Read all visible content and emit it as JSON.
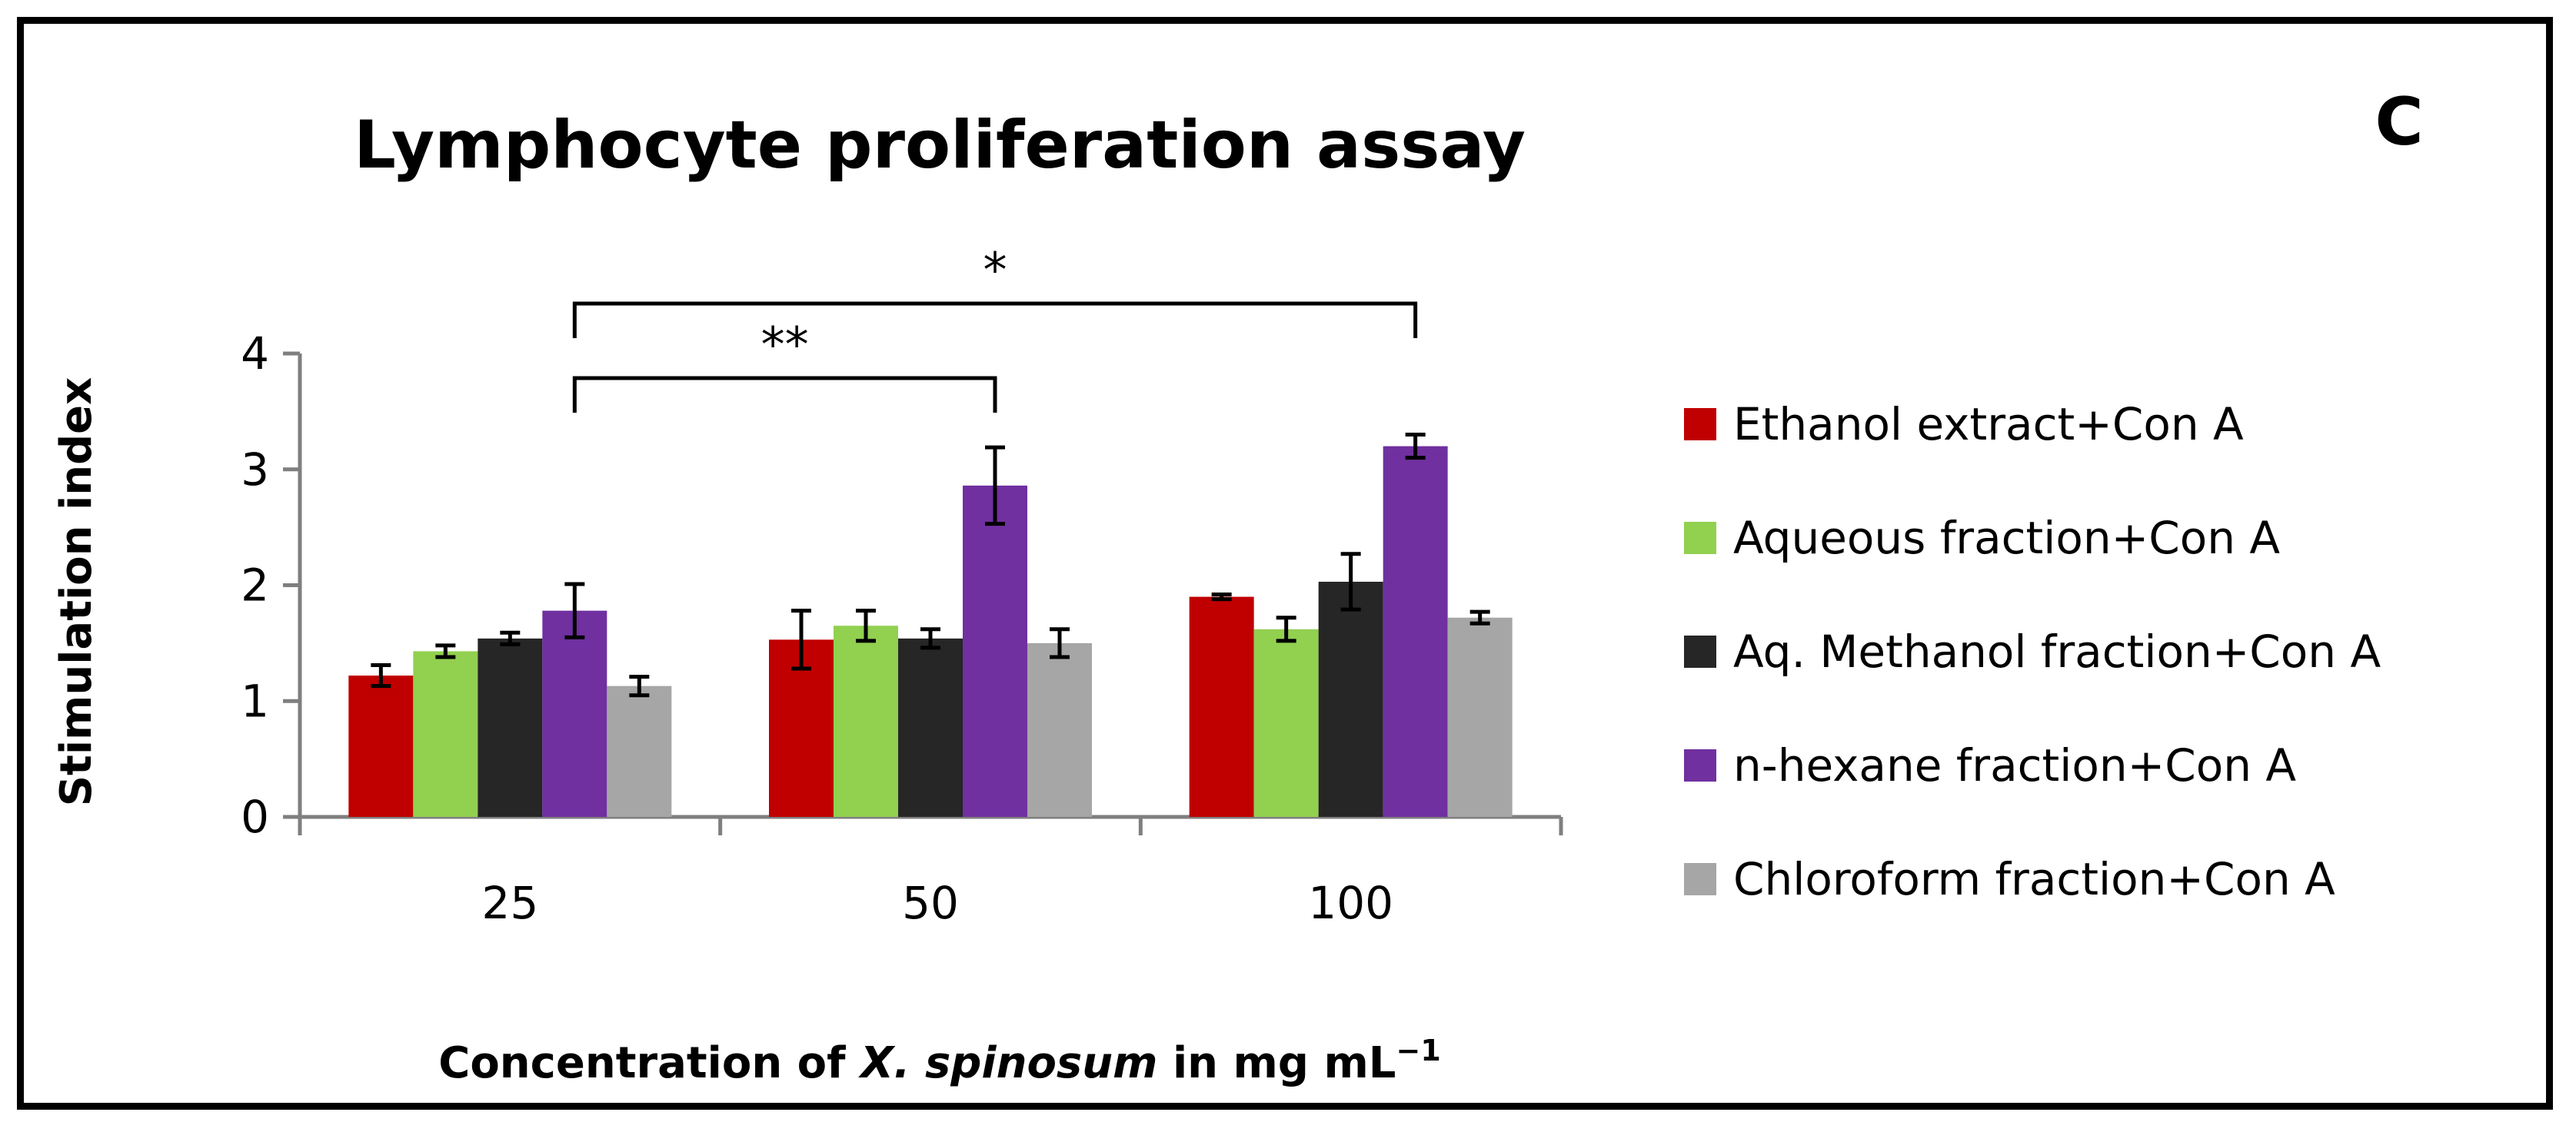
{
  "chart_data": {
    "type": "bar",
    "title": "Lymphocyte proliferation assay",
    "panel_label": "C",
    "xlabel_parts": [
      "Concentration of ",
      "X. spinosum",
      " in mg mL",
      "−1"
    ],
    "ylabel": "Stimulation index",
    "categories": [
      "25",
      "50",
      "100"
    ],
    "ylim": [
      0,
      4
    ],
    "yticks": [
      "0",
      "1",
      "2",
      "3",
      "4"
    ],
    "grid": false,
    "legend_position": "right",
    "series": [
      {
        "name": "Ethanol extract+Con A",
        "color": "#c00000",
        "values": [
          1.22,
          1.53,
          1.9
        ],
        "errors": [
          0.09,
          0.25,
          0.02
        ]
      },
      {
        "name": "Aqueous fraction+Con A",
        "color": "#92d050",
        "values": [
          1.43,
          1.65,
          1.62
        ],
        "errors": [
          0.05,
          0.13,
          0.1
        ]
      },
      {
        "name": "Aq. Methanol fraction+Con A",
        "color": "#262626",
        "values": [
          1.54,
          1.54,
          2.03
        ],
        "errors": [
          0.05,
          0.08,
          0.24
        ]
      },
      {
        "name": "n-hexane fraction+Con A",
        "color": "#7030a0",
        "values": [
          1.78,
          2.86,
          3.2
        ],
        "errors": [
          0.23,
          0.33,
          0.1
        ]
      },
      {
        "name": "Chloroform fraction+Con A",
        "color": "#a6a6a6",
        "values": [
          1.13,
          1.5,
          1.72
        ],
        "errors": [
          0.08,
          0.12,
          0.05
        ]
      }
    ],
    "annotations": [
      {
        "label": "**",
        "from_category": "25",
        "to_category": "50",
        "series": "n-hexane fraction+Con A"
      },
      {
        "label": "*",
        "from_category": "25",
        "to_category": "100",
        "series": "n-hexane fraction+Con A"
      }
    ]
  }
}
